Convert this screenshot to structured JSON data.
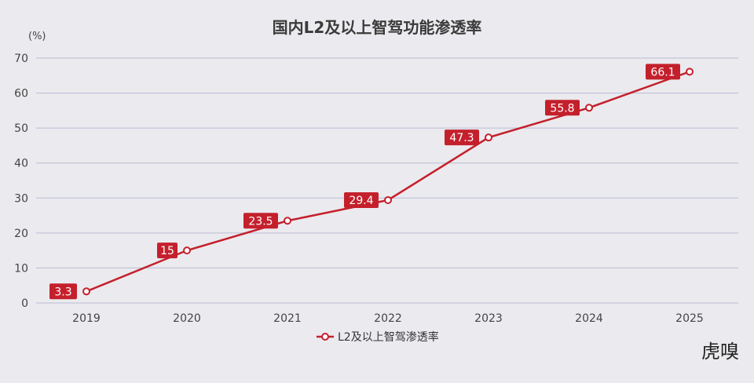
{
  "chart_data": {
    "type": "line",
    "title": "国内L2及以上智驾功能渗透率",
    "unit_label": "(%)",
    "xlabel": "",
    "ylabel": "",
    "ylim": [
      0,
      70
    ],
    "yticks": [
      "0",
      "10",
      "20",
      "30",
      "40",
      "50",
      "60",
      "70"
    ],
    "categories": [
      "2019",
      "2020",
      "2021",
      "2022",
      "2023",
      "2024",
      "2025"
    ],
    "series": [
      {
        "name": "L2及以上智驾渗透率",
        "values": [
          3.3,
          15,
          23.5,
          29.4,
          47.3,
          55.8,
          66.1
        ],
        "labels": [
          "3.3",
          "15",
          "23.5",
          "29.4",
          "47.3",
          "55.8",
          "66.1"
        ],
        "color": "#c4202c"
      }
    ],
    "grid": true,
    "legend": "bottom-center",
    "data_labels": true
  },
  "colors": {
    "background": "#ebeaee",
    "grid": "#b9bcd6",
    "line": "#c4202c",
    "label_box": "#c4202c",
    "label_text": "#ffffff",
    "marker_fill": "#ffffff"
  },
  "watermark": "虎嗅"
}
